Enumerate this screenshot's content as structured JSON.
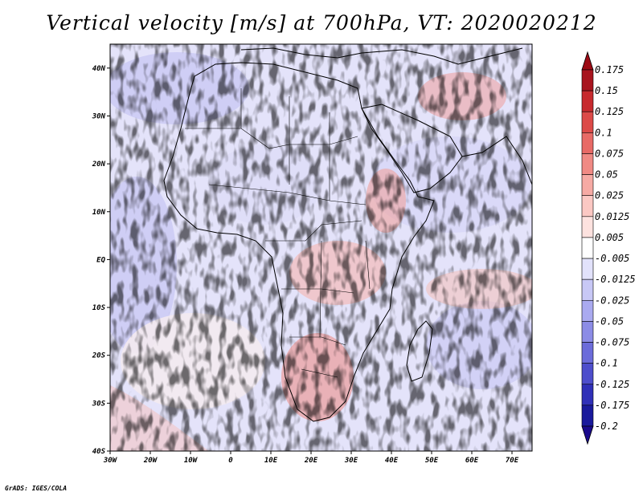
{
  "title": "Vertical velocity [m/s] at 700hPa, VT: 2020020212",
  "credit": "GrADS: IGES/COLA",
  "map": {
    "field": "vertical velocity",
    "level": "700hPa",
    "lon_range": [
      -30,
      75
    ],
    "lat_range": [
      -40,
      45
    ],
    "lat_ticks": [
      "40N",
      "30N",
      "20N",
      "10N",
      "EQ",
      "10S",
      "20S",
      "30S",
      "40S"
    ],
    "lat_tick_values": [
      40,
      30,
      20,
      10,
      0,
      -10,
      -20,
      -30,
      -40
    ],
    "lon_ticks": [
      "30W",
      "20W",
      "10W",
      "0",
      "10E",
      "20E",
      "30E",
      "40E",
      "50E",
      "60E",
      "70E"
    ],
    "lon_tick_values": [
      -30,
      -20,
      -10,
      0,
      10,
      20,
      30,
      40,
      50,
      60,
      70
    ]
  },
  "colorbar": {
    "labels": [
      "0.175",
      "0.15",
      "0.125",
      "0.1",
      "0.075",
      "0.05",
      "0.025",
      "0.0125",
      "0.005",
      "-0.005",
      "-0.0125",
      "-0.025",
      "-0.05",
      "-0.075",
      "-0.1",
      "-0.125",
      "-0.175",
      "-0.2"
    ],
    "colors": [
      "#a8141e",
      "#c72a2e",
      "#dc4a48",
      "#e86a66",
      "#f08a84",
      "#f6aaa4",
      "#fbc8c3",
      "#fde2df",
      "#ffffff",
      "#e2e2fb",
      "#c8c8f6",
      "#aaaaf0",
      "#8c8ce6",
      "#6c6cda",
      "#4e4ecc",
      "#3030b8",
      "#1a1a9c"
    ],
    "top_triangle_color": "#9c0a14",
    "bottom_triangle_color": "#1a0a8c"
  }
}
